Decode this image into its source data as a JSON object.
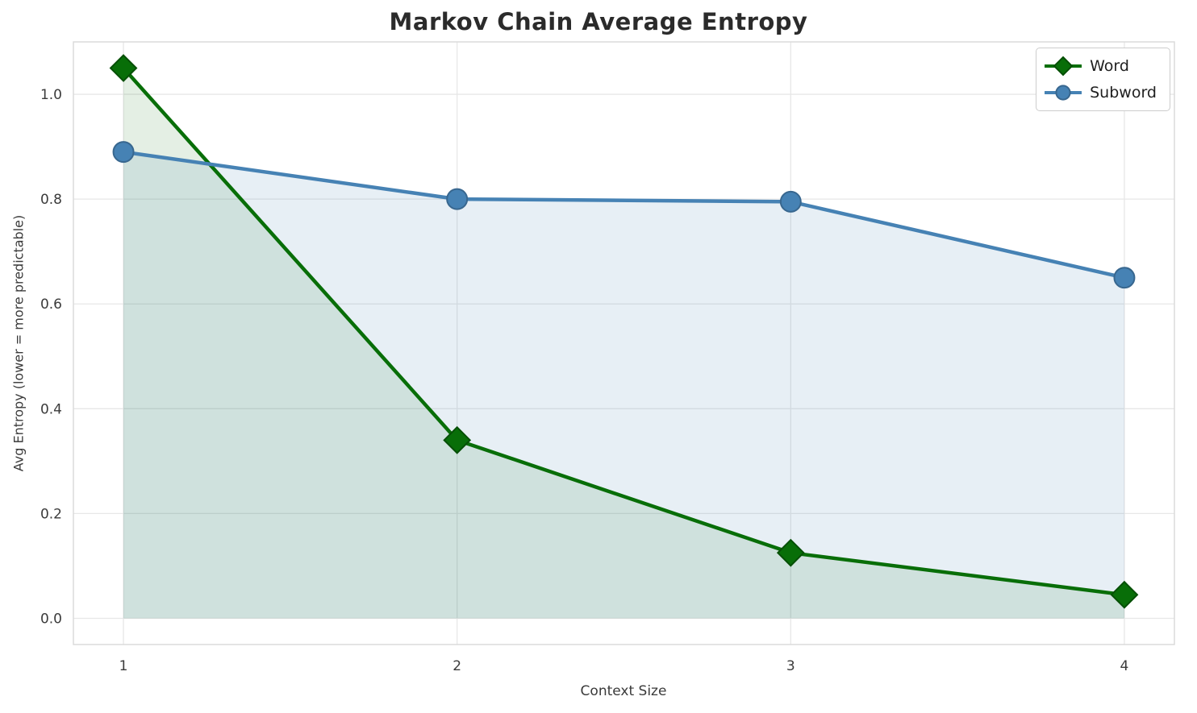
{
  "chart_data": {
    "type": "line",
    "title": "Markov Chain Average Entropy",
    "xlabel": "Context Size",
    "ylabel": "Avg Entropy (lower = more predictable)",
    "x": [
      1,
      2,
      3,
      4
    ],
    "series": [
      {
        "name": "Word",
        "values": [
          1.05,
          0.34,
          0.125,
          0.045
        ],
        "color": "#086e08",
        "edge_color": "#064f06",
        "marker": "diamond",
        "fill": "rgba(8, 110, 8, 0.11)"
      },
      {
        "name": "Subword",
        "values": [
          0.89,
          0.8,
          0.795,
          0.65
        ],
        "color": "#4682b4",
        "edge_color": "#38678f",
        "marker": "circle",
        "fill": "rgba(70, 130, 180, 0.13)"
      }
    ],
    "fill_baseline": 0,
    "xlim": [
      0.85,
      4.15
    ],
    "ylim": [
      -0.05,
      1.1
    ],
    "xticks": {
      "values": [
        1,
        2,
        3,
        4
      ],
      "labels": [
        "1",
        "2",
        "3",
        "4"
      ]
    },
    "yticks": {
      "values": [
        0.0,
        0.2,
        0.4,
        0.6,
        0.8,
        1.0
      ],
      "labels": [
        "0.0",
        "0.2",
        "0.4",
        "0.6",
        "0.8",
        "1.0"
      ]
    },
    "grid": true,
    "legend": {
      "position": "upper right",
      "entries": [
        "Word",
        "Subword"
      ]
    }
  },
  "style": {
    "background": "#ffffff",
    "grid_color": "#e7e7e7",
    "spine_color": "#d9d9d9",
    "tick_color": "#3b3b3b",
    "title_color": "#2b2b2b"
  }
}
